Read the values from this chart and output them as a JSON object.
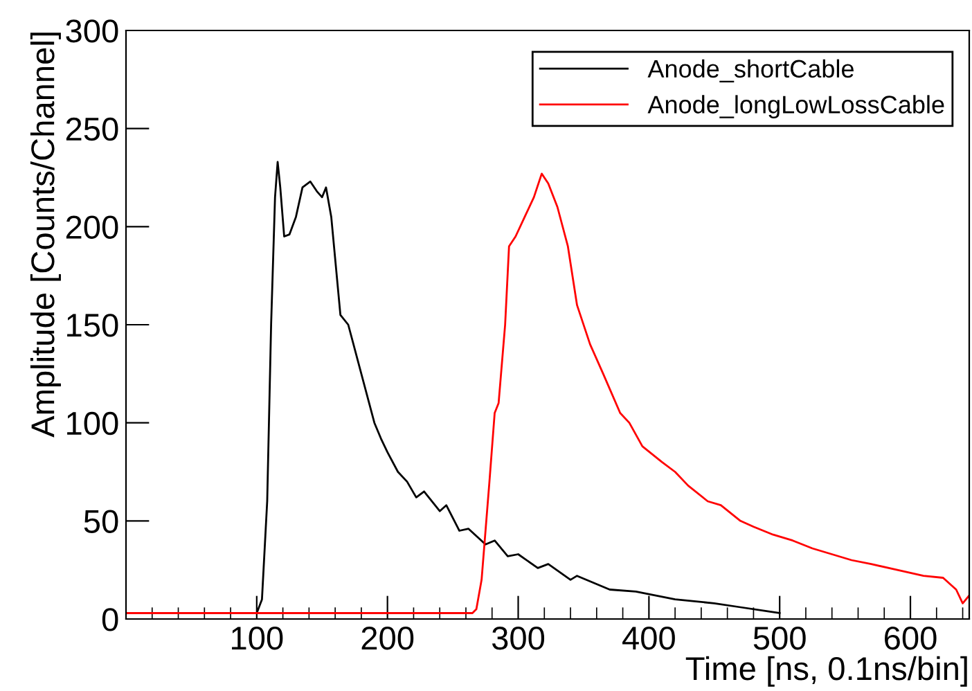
{
  "chart_data": {
    "type": "line",
    "xlabel": "Time [ns, 0.1ns/bin]",
    "ylabel": "Amplitude [Counts/Channel]",
    "xlim": [
      0,
      645
    ],
    "xticks": [
      100,
      200,
      300,
      400,
      500,
      600
    ],
    "ylim": [
      0,
      300
    ],
    "yticks": [
      0,
      50,
      100,
      150,
      200,
      250,
      300
    ],
    "grid": false,
    "legend": "top right",
    "marker": "none",
    "line_style": "solid",
    "series": [
      {
        "name": "Anode_shortCable",
        "color": "#000000",
        "x": [
          0,
          50,
          100,
          104,
          108,
          111,
          114,
          116,
          118,
          121,
          125,
          130,
          135,
          141,
          146,
          150,
          153,
          157,
          164,
          170,
          180,
          190,
          195,
          200,
          208,
          215,
          222,
          228,
          240,
          245,
          255,
          262,
          275,
          282,
          292,
          300,
          315,
          323,
          340,
          345,
          370,
          390,
          420,
          450,
          470,
          490,
          500
        ],
        "values": [
          3,
          3,
          3,
          10,
          60,
          150,
          215,
          233,
          220,
          195,
          196,
          205,
          220,
          223,
          218,
          215,
          220,
          205,
          155,
          150,
          125,
          100,
          92,
          85,
          75,
          70,
          62,
          65,
          55,
          58,
          45,
          46,
          38,
          40,
          32,
          33,
          26,
          28,
          20,
          22,
          15,
          14,
          10,
          8,
          6,
          4,
          3
        ]
      },
      {
        "name": "Anode_longLowLossCable",
        "color": "#ff0000",
        "x": [
          0,
          100,
          200,
          265,
          268,
          272,
          278,
          282,
          285,
          290,
          293,
          298,
          305,
          312,
          318,
          323,
          330,
          338,
          345,
          355,
          365,
          378,
          385,
          395,
          410,
          420,
          430,
          445,
          455,
          470,
          480,
          495,
          510,
          525,
          540,
          555,
          570,
          590,
          610,
          625,
          635,
          640,
          645
        ],
        "values": [
          3,
          3,
          3,
          3,
          5,
          20,
          70,
          105,
          110,
          150,
          190,
          195,
          205,
          215,
          227,
          222,
          210,
          190,
          160,
          140,
          125,
          105,
          100,
          88,
          80,
          75,
          68,
          60,
          58,
          50,
          47,
          43,
          40,
          36,
          33,
          30,
          28,
          25,
          22,
          21,
          15,
          8,
          12
        ]
      }
    ]
  }
}
